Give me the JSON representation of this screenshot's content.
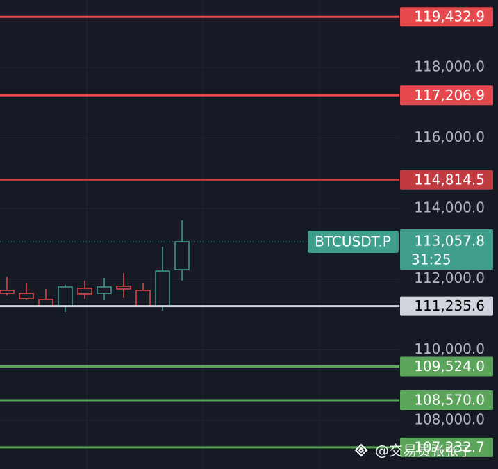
{
  "chart_data": {
    "type": "candlestick",
    "background": "#161a25",
    "up_color": "#3f9e8c",
    "down_color": "#e5484d",
    "grid": true,
    "ylim": [
      106620,
      119910
    ],
    "yticks": [
      {
        "value": 108000,
        "label": "108,000.0"
      },
      {
        "value": 110000,
        "label": "110,000.0"
      },
      {
        "value": 112000,
        "label": "112,000.0"
      },
      {
        "value": 114000,
        "label": "114,000.0"
      },
      {
        "value": 116000,
        "label": "116,000.0"
      },
      {
        "value": 118000,
        "label": "118,000.0"
      }
    ],
    "open": [
      111680,
      111600,
      111425,
      111228,
      111740,
      111600,
      111800,
      111680,
      111228,
      112270
    ],
    "high": [
      112070,
      111880,
      111720,
      111840,
      111960,
      112035,
      112170,
      111880,
      112920,
      113670
    ],
    "low": [
      111540,
      111405,
      111228,
      111070,
      111445,
      111405,
      111465,
      111208,
      111110,
      111960
    ],
    "close": [
      111600,
      111445,
      111228,
      111780,
      111583,
      111780,
      111720,
      111228,
      112230,
      113057.8
    ],
    "levels": [
      {
        "value": 119432.9,
        "label": "119,432.9",
        "color": "#e5484d"
      },
      {
        "value": 117206.9,
        "label": "117,206.9",
        "color": "#e5484d"
      },
      {
        "value": 114814.5,
        "label": "114,814.5",
        "color": "#c13a3f"
      },
      {
        "value": 111235.6,
        "label": "111,235.6",
        "color": "#d1d4dc"
      },
      {
        "value": 109524.0,
        "label": "109,524.0",
        "color": "#5aa55a"
      },
      {
        "value": 108570.0,
        "label": "108,570.0",
        "color": "#5aa55a"
      },
      {
        "value": 107232.7,
        "label": "107,232.7",
        "color": "#5aa55a"
      }
    ],
    "current": {
      "symbol": "BTCUSDT.P",
      "value": 113057.8,
      "label": "113,057.8",
      "countdown": "31:25",
      "color": "#3f9e8c"
    },
    "watermark": "@交易员张张子"
  }
}
